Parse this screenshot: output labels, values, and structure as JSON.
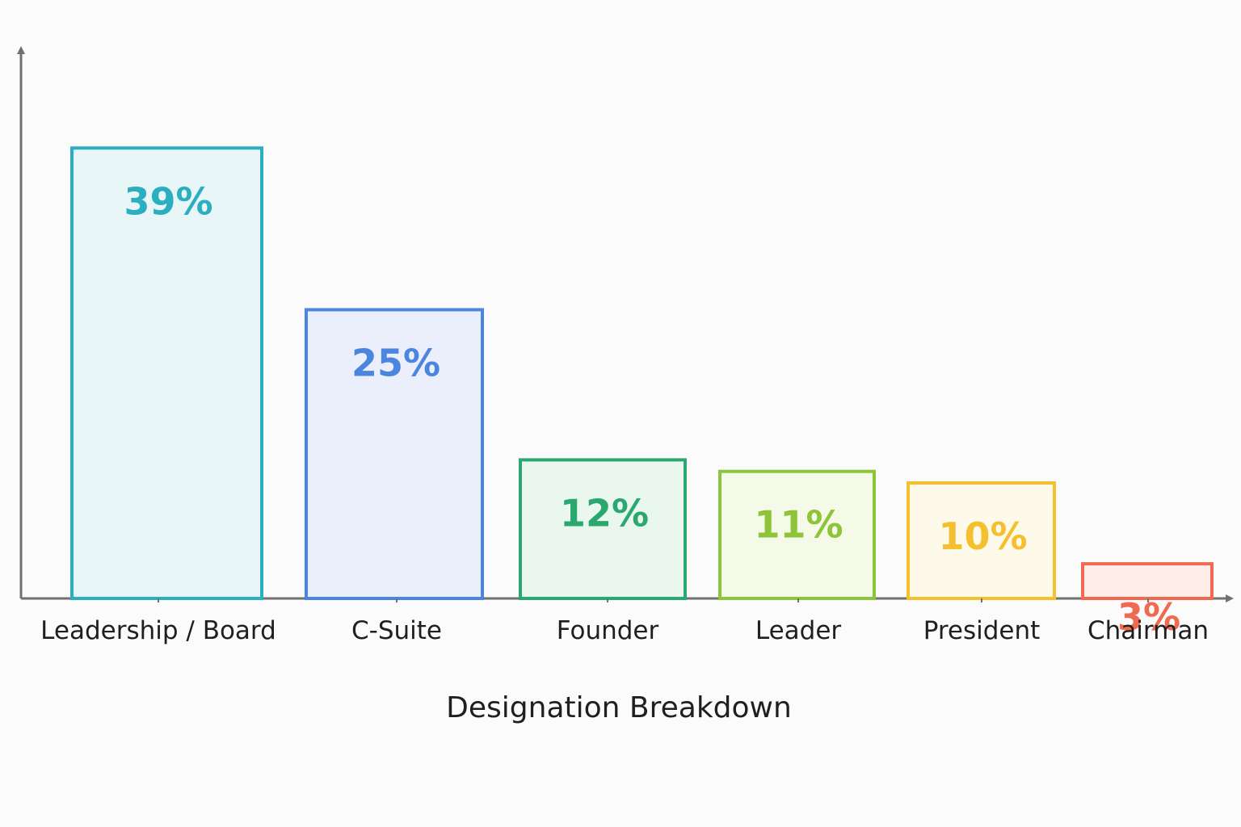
{
  "chart_data": {
    "type": "bar",
    "title": "",
    "xlabel": "Designation Breakdown",
    "ylabel": "",
    "ylim": [
      0,
      100
    ],
    "grid": false,
    "legend": "none",
    "categories": [
      "Leadership / Board",
      "C-Suite",
      "Founder",
      "Leader",
      "President",
      "Chairman"
    ],
    "values": [
      39,
      25,
      12,
      11,
      10,
      3
    ],
    "value_labels": [
      "39%",
      "25%",
      "12%",
      "11%",
      "10%",
      "3%"
    ],
    "colors": {
      "strokes": [
        "#2aaec0",
        "#4a86e0",
        "#2aa870",
        "#8cc43a",
        "#f5c030",
        "#ef6a50"
      ],
      "fills": [
        "#e9f6f8",
        "#eaeffb",
        "#eaf7ef",
        "#f4f9e8",
        "#fefaea",
        "#fdeeea"
      ],
      "axis": "#707070"
    }
  }
}
